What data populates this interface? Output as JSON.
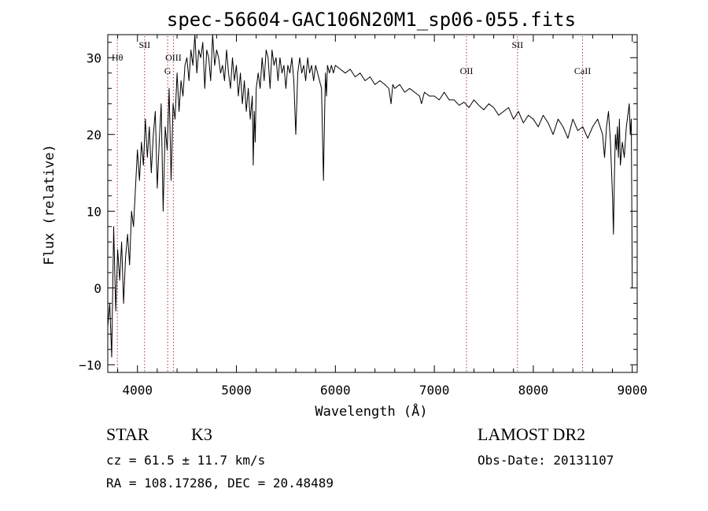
{
  "chart_data": {
    "type": "line",
    "title": "spec-56604-GAC106N20M1_sp06-055.fits",
    "xlabel": "Wavelength (Å)",
    "ylabel": "Flux (relative)",
    "xlim": [
      3700,
      9050
    ],
    "ylim": [
      -11,
      33
    ],
    "xticks": [
      4000,
      5000,
      6000,
      7000,
      8000,
      9000
    ],
    "yticks": [
      -10,
      0,
      10,
      20,
      30
    ],
    "ytick_labels": [
      "−10",
      "0",
      "10",
      "20",
      "30"
    ],
    "grid": false,
    "series": [
      {
        "x": [
          3700,
          3720,
          3740,
          3760,
          3780,
          3800,
          3820,
          3840,
          3860,
          3880,
          3900,
          3920,
          3940,
          3960,
          3980,
          4000,
          4020,
          4040,
          4060,
          4080,
          4100,
          4120,
          4140,
          4160,
          4180,
          4200,
          4220,
          4240,
          4260,
          4280,
          4300,
          4320,
          4340,
          4360,
          4380,
          4400,
          4420,
          4440,
          4460,
          4480,
          4500,
          4520,
          4540,
          4560,
          4580,
          4600,
          4620,
          4640,
          4660,
          4680,
          4700,
          4720,
          4740,
          4760,
          4780,
          4800,
          4820,
          4840,
          4860,
          4880,
          4900,
          4920,
          4940,
          4960,
          4980,
          5000,
          5020,
          5040,
          5060,
          5080,
          5100,
          5120,
          5140,
          5160,
          5170,
          5180,
          5190,
          5200,
          5220,
          5240,
          5260,
          5280,
          5300,
          5320,
          5340,
          5360,
          5380,
          5400,
          5420,
          5440,
          5460,
          5480,
          5500,
          5520,
          5540,
          5560,
          5580,
          5600,
          5620,
          5640,
          5660,
          5680,
          5700,
          5720,
          5740,
          5760,
          5780,
          5800,
          5820,
          5840,
          5860,
          5880,
          5890,
          5900,
          5910,
          5920,
          5940,
          5960,
          5980,
          6000,
          6050,
          6100,
          6150,
          6200,
          6250,
          6300,
          6350,
          6400,
          6450,
          6500,
          6540,
          6563,
          6580,
          6600,
          6650,
          6700,
          6750,
          6800,
          6850,
          6870,
          6900,
          6950,
          7000,
          7050,
          7100,
          7150,
          7200,
          7250,
          7300,
          7350,
          7400,
          7450,
          7500,
          7550,
          7600,
          7650,
          7700,
          7750,
          7800,
          7850,
          7900,
          7950,
          8000,
          8050,
          8100,
          8150,
          8200,
          8250,
          8300,
          8350,
          8400,
          8450,
          8500,
          8550,
          8600,
          8650,
          8700,
          8720,
          8740,
          8760,
          8780,
          8800,
          8810,
          8820,
          8830,
          8840,
          8850,
          8860,
          8870,
          8880,
          8900,
          8920,
          8940,
          8960,
          8970,
          8980,
          8990,
          9000
        ],
        "y": [
          -5,
          -2,
          -9,
          8,
          -3,
          5,
          1,
          6,
          -2,
          4,
          7,
          3,
          10,
          8,
          13,
          18,
          14,
          19,
          16,
          22,
          17,
          21,
          15,
          20,
          23,
          13,
          19,
          24,
          10,
          21,
          18,
          26,
          14,
          24,
          22,
          28,
          23,
          27,
          25,
          29,
          30,
          27,
          31,
          29,
          33,
          28,
          31,
          30,
          32,
          26,
          31,
          30,
          27,
          33,
          29,
          31,
          30,
          28,
          29,
          27,
          31,
          28,
          26,
          30,
          27,
          29,
          25,
          28,
          24,
          27,
          23,
          26,
          22,
          25,
          16,
          23,
          19,
          26,
          28,
          26,
          30,
          27,
          31,
          30,
          26,
          31,
          29,
          30,
          27,
          30,
          28,
          29,
          26,
          29,
          28,
          30,
          27,
          20,
          28,
          30,
          28,
          29,
          27,
          30,
          28,
          29,
          27,
          29,
          28,
          27,
          26,
          14,
          22,
          28,
          25,
          29,
          28,
          29,
          28,
          29,
          28.5,
          28,
          28.5,
          27.5,
          28,
          27,
          27.5,
          26.5,
          27,
          26.5,
          26,
          24,
          26.5,
          26,
          26.5,
          25.5,
          26,
          25.5,
          25,
          24,
          25.5,
          25,
          25,
          24.5,
          25.5,
          24.5,
          24.5,
          23.8,
          24.2,
          23.5,
          24.5,
          23.8,
          23.2,
          24,
          23.5,
          22.5,
          23,
          23.5,
          22,
          23,
          21.5,
          22.5,
          22,
          21,
          22.5,
          21.5,
          20,
          22,
          21,
          19.5,
          22,
          20.5,
          21,
          19.5,
          21,
          22,
          20,
          17,
          21,
          23,
          19,
          12,
          7,
          15,
          20,
          18,
          21,
          17,
          22,
          16,
          19,
          17,
          21,
          23,
          24,
          20,
          22,
          0
        ]
      }
    ],
    "line_markers": [
      {
        "label": "Hθ",
        "x": 3797,
        "row": 0
      },
      {
        "label": "SII",
        "x": 4072,
        "row": -1
      },
      {
        "label": "OIII",
        "x": 4363,
        "row": 0
      },
      {
        "label": "G",
        "x": 4305,
        "row": 1
      },
      {
        "label": "OII",
        "x": 7325,
        "row": 1
      },
      {
        "label": "SII",
        "x": 7840,
        "row": -1
      },
      {
        "label": "CaII",
        "x": 8498,
        "row": 1
      }
    ],
    "marker_color": "#b03030",
    "line_color": "#000000"
  },
  "footer": {
    "object_class": "STAR",
    "subclass": "K3",
    "survey": "LAMOST DR2",
    "cz": "cz = 61.5 ± 11.7 km/s",
    "obs_date": "Obs-Date: 20131107",
    "coords": "RA = 108.17286, DEC =  20.48489"
  }
}
